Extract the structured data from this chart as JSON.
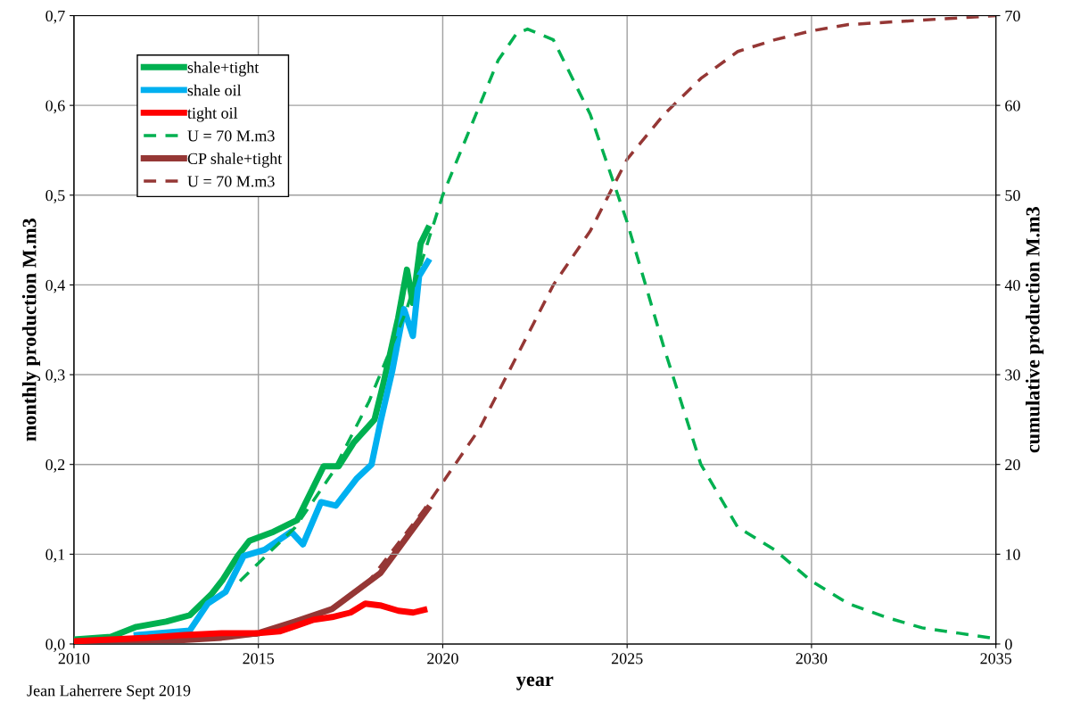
{
  "chart_data": {
    "type": "line",
    "xlabel": "year",
    "ylabel": "monthly production M.m3",
    "y2label": "cumulative production M.m3",
    "annotations": [
      "Jean Laherrere Sept 2019"
    ],
    "xlim": [
      2010,
      2035
    ],
    "xticks": [
      2010,
      2015,
      2020,
      2025,
      2030,
      2035
    ],
    "ylim": [
      0,
      0.7
    ],
    "yticks": [
      {
        "value": 0,
        "label": "0,0"
      },
      {
        "value": 0.1,
        "label": "0,1"
      },
      {
        "value": 0.2,
        "label": "0,2"
      },
      {
        "value": 0.3,
        "label": "0,3"
      },
      {
        "value": 0.4,
        "label": "0,4"
      },
      {
        "value": 0.5,
        "label": "0,5"
      },
      {
        "value": 0.6,
        "label": "0,6"
      },
      {
        "value": 0.7,
        "label": "0,7"
      }
    ],
    "y2lim": [
      0,
      70
    ],
    "y2ticks": [
      0,
      10,
      20,
      30,
      40,
      50,
      60,
      70
    ],
    "grid": true,
    "legend": "top left",
    "series": [
      {
        "name": "shale+tight",
        "color": "#00b050",
        "line_style": "solid",
        "x": [
          2010,
          2011,
          2011.69,
          2012.5,
          2013.14,
          2013.72,
          2014.04,
          2014.44,
          2014.76,
          2015.41,
          2016.05,
          2016.77,
          2017.18,
          2017.58,
          2018.15,
          2018.39,
          2018.79,
          2019.03,
          2019.19,
          2019.4,
          2019.6
        ],
        "values": [
          0.005,
          0.008,
          0.019,
          0.025,
          0.032,
          0.055,
          0.072,
          0.098,
          0.115,
          0.125,
          0.138,
          0.198,
          0.198,
          0.224,
          0.25,
          0.29,
          0.363,
          0.417,
          0.38,
          0.446,
          0.463
        ]
      },
      {
        "name": "shale oil",
        "color": "#00b0f0",
        "line_style": "solid",
        "x": [
          2011.7,
          2013.14,
          2013.63,
          2014.11,
          2014.6,
          2015.17,
          2015.89,
          2016.21,
          2016.7,
          2017.1,
          2017.66,
          2018.07,
          2018.31,
          2018.63,
          2018.95,
          2019.19,
          2019.36,
          2019.6
        ],
        "values": [
          0.01,
          0.015,
          0.045,
          0.058,
          0.098,
          0.105,
          0.125,
          0.111,
          0.158,
          0.154,
          0.184,
          0.2,
          0.247,
          0.304,
          0.373,
          0.343,
          0.41,
          0.426
        ]
      },
      {
        "name": "tight oil",
        "color": "#ff0000",
        "line_style": "solid",
        "x": [
          2010,
          2012,
          2013,
          2014,
          2015,
          2015.57,
          2016,
          2016.5,
          2017,
          2017.5,
          2017.9,
          2018.3,
          2018.8,
          2019.2,
          2019.5
        ],
        "values": [
          0.003,
          0.007,
          0.01,
          0.012,
          0.012,
          0.014,
          0.02,
          0.027,
          0.03,
          0.035,
          0.045,
          0.043,
          0.037,
          0.035,
          0.038
        ]
      },
      {
        "name": "U = 70 M.m3",
        "color": "#00b050",
        "line_style": "dashed",
        "x": [
          2014.5,
          2015,
          2016,
          2017,
          2018,
          2019,
          2020,
          2021,
          2021.5,
          2022,
          2022.3,
          2023,
          2024,
          2025,
          2026,
          2027,
          2028,
          2029,
          2030,
          2031,
          2032,
          2033,
          2034,
          2035
        ],
        "values": [
          0.07,
          0.09,
          0.13,
          0.19,
          0.27,
          0.37,
          0.5,
          0.6,
          0.65,
          0.68,
          0.685,
          0.673,
          0.59,
          0.47,
          0.33,
          0.2,
          0.13,
          0.105,
          0.07,
          0.045,
          0.03,
          0.018,
          0.012,
          0.006
        ]
      },
      {
        "name": "CP shale+tight",
        "color": "#953735",
        "line_style": "solid",
        "axis": "y2",
        "x": [
          2010,
          2012,
          2014,
          2015,
          2016,
          2017,
          2018.31,
          2019.6
        ],
        "values": [
          0,
          0.2,
          0.7,
          1.2,
          2.5,
          3.9,
          7.9,
          15.1
        ]
      },
      {
        "name": "U = 70 M.m3",
        "color": "#953735",
        "line_style": "dashed",
        "axis": "y2",
        "x": [
          2010,
          2015,
          2017,
          2018,
          2019.5,
          2020,
          2021,
          2022,
          2023,
          2024,
          2025,
          2026,
          2027,
          2028,
          2029,
          2030,
          2031,
          2033,
          2035
        ],
        "values": [
          0,
          1,
          4,
          7,
          15,
          18,
          24,
          32,
          40,
          46,
          54,
          59,
          63,
          66,
          67.3,
          68.3,
          69,
          69.5,
          70
        ]
      }
    ]
  }
}
